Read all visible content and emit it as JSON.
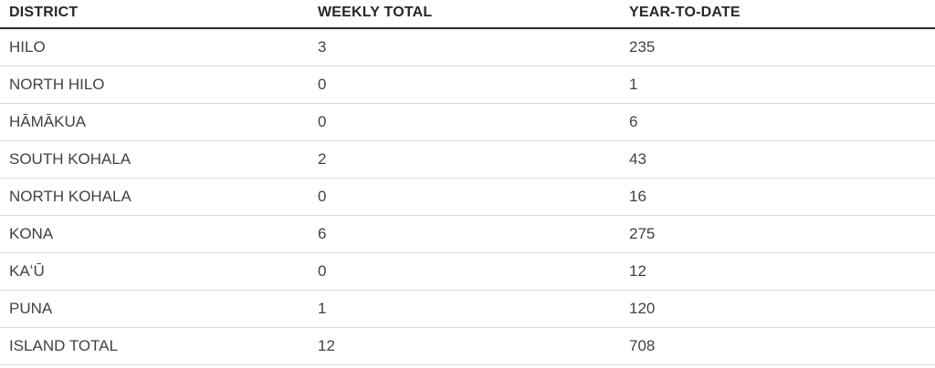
{
  "chart_data": {
    "type": "table",
    "columns": [
      "DISTRICT",
      "WEEKLY TOTAL",
      "YEAR-TO-DATE"
    ],
    "rows": [
      [
        "HILO",
        3,
        235
      ],
      [
        "NORTH HILO",
        0,
        1
      ],
      [
        "HĀMĀKUA",
        0,
        6
      ],
      [
        "SOUTH KOHALA",
        2,
        43
      ],
      [
        "NORTH KOHALA",
        0,
        16
      ],
      [
        "KONA",
        6,
        275
      ],
      [
        "KAʻŪ",
        0,
        12
      ],
      [
        "PUNA",
        1,
        120
      ],
      [
        "ISLAND TOTAL",
        12,
        708
      ]
    ],
    "title": "",
    "legend": "none",
    "grid": "horizontal-row-dividers"
  },
  "colors": {
    "background": "#ffffff",
    "header_text": "#26282c",
    "body_text": "#3c434a",
    "header_border": "#26282c",
    "row_divider": "#d9d9dc"
  }
}
